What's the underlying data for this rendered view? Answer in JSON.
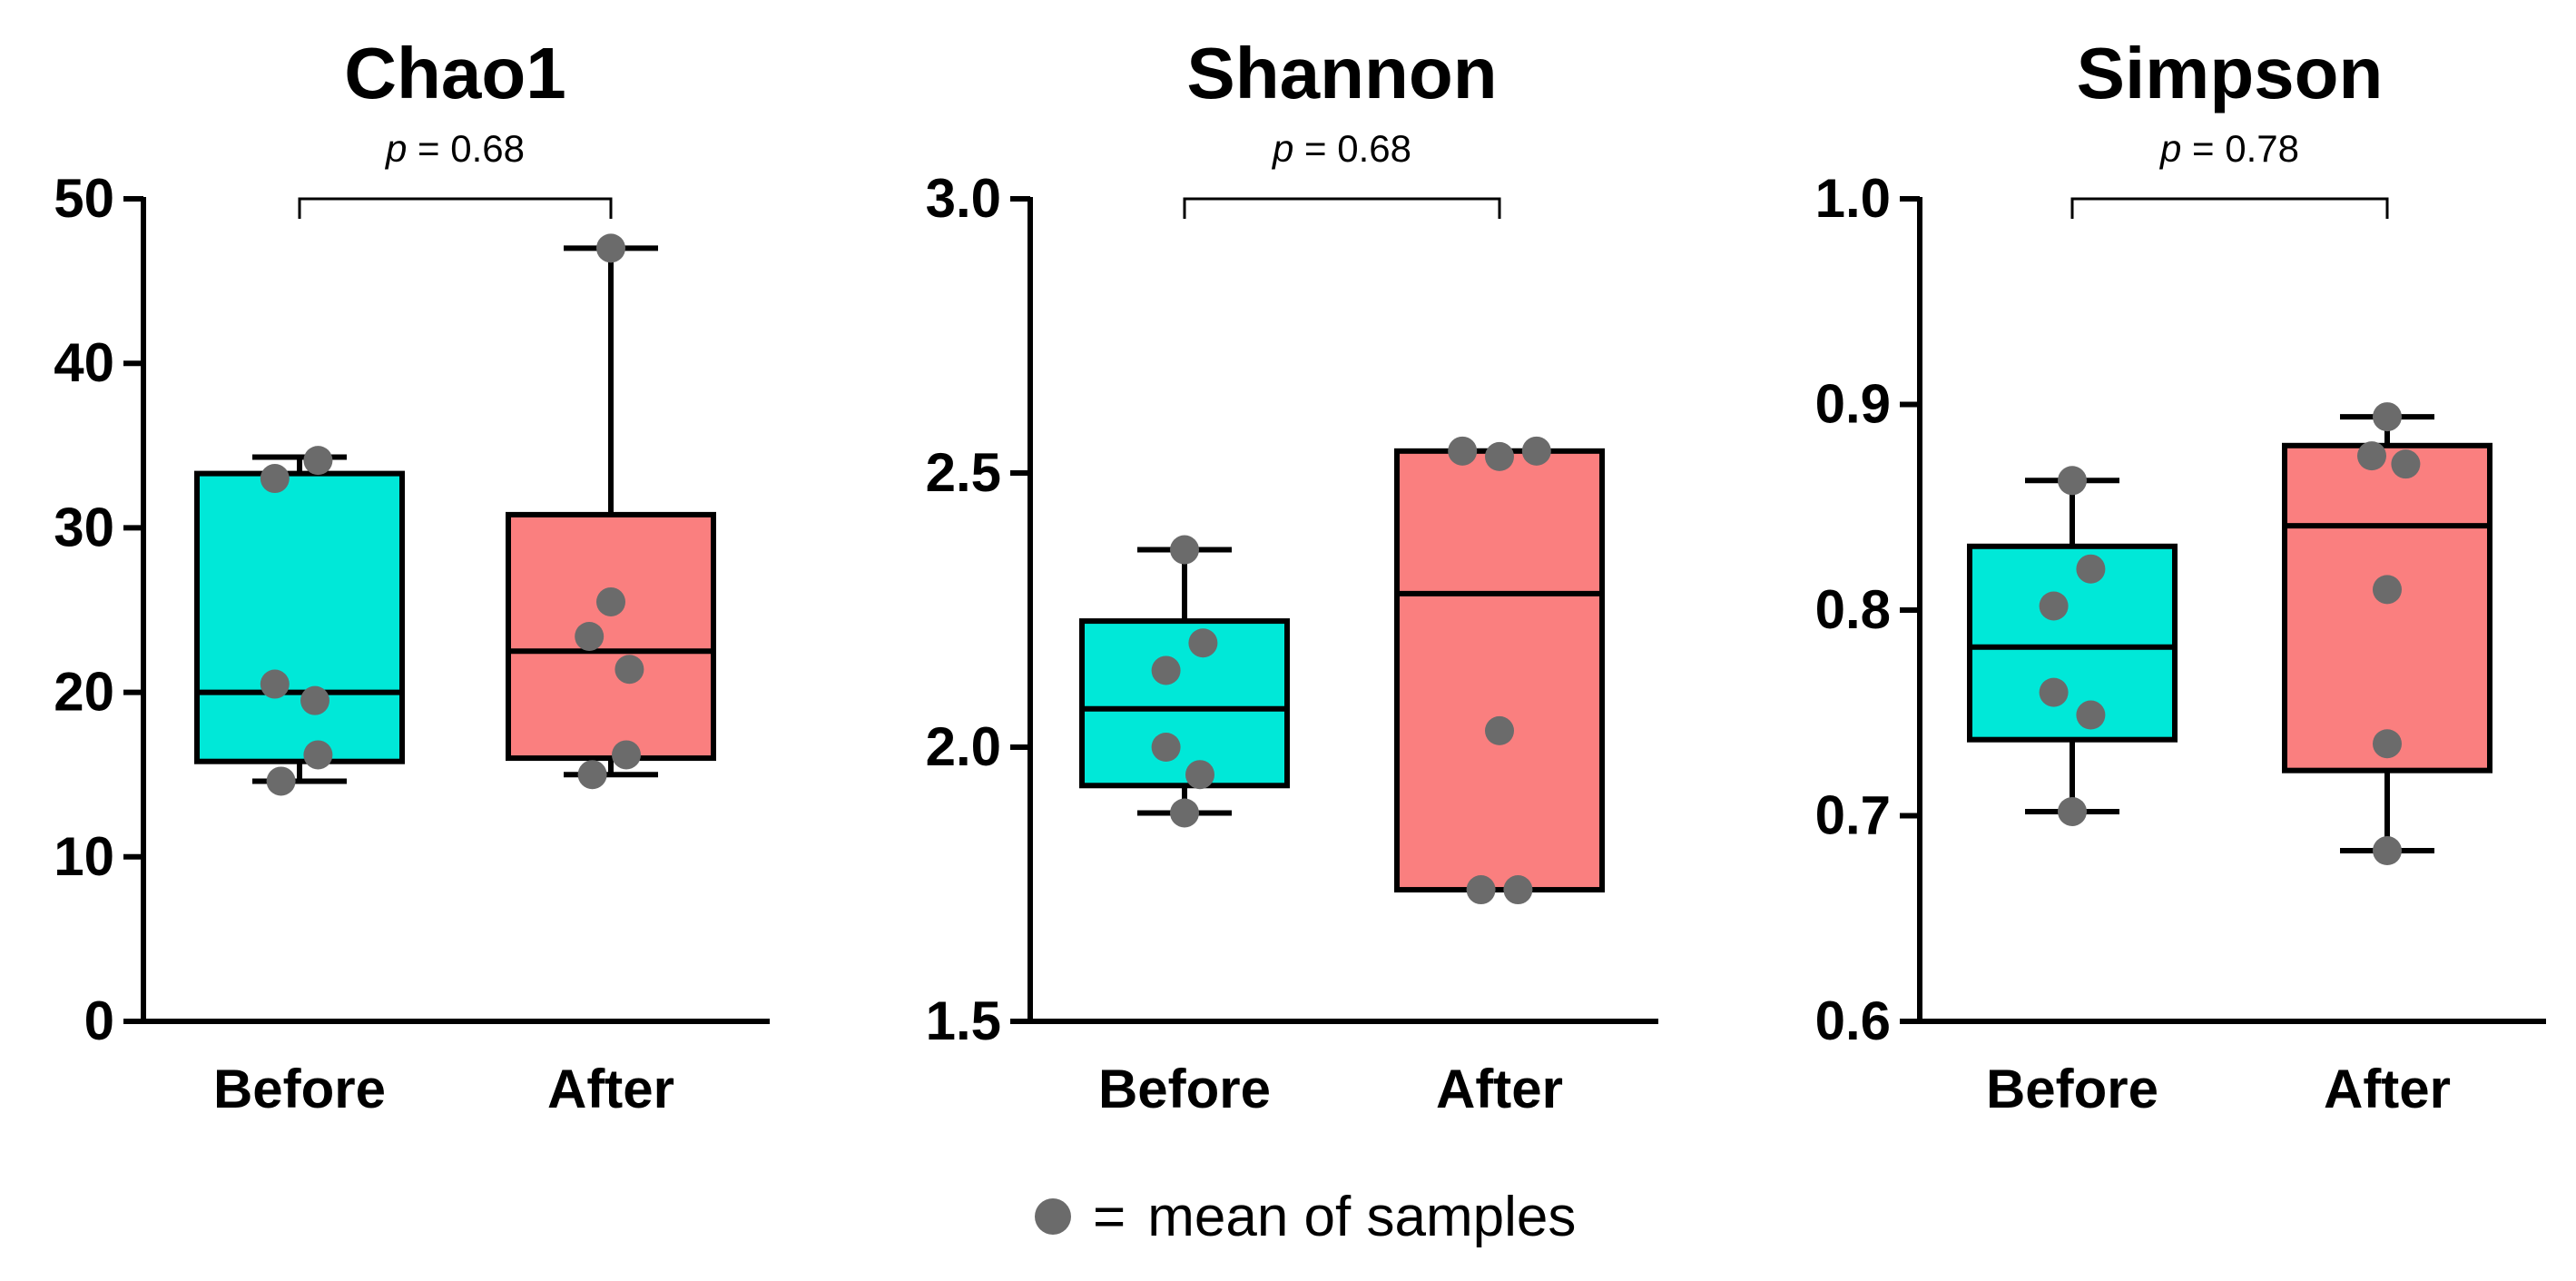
{
  "colors": {
    "before_fill": "#00e8d8",
    "after_fill": "#fa7f7f",
    "point": "#6b6b6b",
    "axis": "#000000"
  },
  "legend": {
    "marker_icon": "filled-circle",
    "equals": "=",
    "text": "mean of samples"
  },
  "chart_data": [
    {
      "type": "box",
      "title": "Chao1",
      "p_label": "p",
      "p_value": "= 0.68",
      "ylim": [
        0,
        50
      ],
      "yticks": [
        0,
        10,
        20,
        30,
        40,
        50
      ],
      "ytick_labels": [
        "0",
        "10",
        "20",
        "30",
        "40",
        "50"
      ],
      "categories": [
        "Before",
        "After"
      ],
      "boxes": [
        {
          "name": "Before",
          "min": 14.6,
          "q1": 15.8,
          "median": 20.0,
          "q3": 33.3,
          "max": 34.3,
          "points": [
            [
              -0.06,
              14.6
            ],
            [
              -0.08,
              20.5
            ],
            [
              0.05,
              19.5
            ],
            [
              0.06,
              16.2
            ],
            [
              -0.08,
              33.0
            ],
            [
              0.06,
              34.1
            ]
          ]
        },
        {
          "name": "After",
          "min": 15.0,
          "q1": 16.0,
          "median": 22.5,
          "q3": 30.8,
          "max": 47.0,
          "points": [
            [
              -0.06,
              15.0
            ],
            [
              0.05,
              16.2
            ],
            [
              0.06,
              21.4
            ],
            [
              -0.07,
              23.4
            ],
            [
              0.0,
              25.5
            ],
            [
              0.0,
              47.0
            ]
          ]
        }
      ]
    },
    {
      "type": "box",
      "title": "Shannon",
      "p_label": "p",
      "p_value": "= 0.68",
      "ylim": [
        1.5,
        3.0
      ],
      "yticks": [
        1.5,
        2.0,
        2.5,
        3.0
      ],
      "ytick_labels": [
        "1.5",
        "2.0",
        "2.5",
        "3.0"
      ],
      "categories": [
        "Before",
        "After"
      ],
      "boxes": [
        {
          "name": "Before",
          "min": 1.88,
          "q1": 1.93,
          "median": 2.07,
          "q3": 2.23,
          "max": 2.36,
          "points": [
            [
              0.0,
              1.88
            ],
            [
              0.05,
              1.95
            ],
            [
              -0.06,
              2.0
            ],
            [
              -0.06,
              2.14
            ],
            [
              0.06,
              2.19
            ],
            [
              0.0,
              2.36
            ]
          ]
        },
        {
          "name": "After",
          "min": 1.74,
          "q1": 1.74,
          "median": 2.28,
          "q3": 2.54,
          "max": 2.54,
          "points": [
            [
              -0.06,
              1.74
            ],
            [
              0.06,
              1.74
            ],
            [
              0.0,
              2.03
            ],
            [
              -0.12,
              2.54
            ],
            [
              0.0,
              2.53
            ],
            [
              0.12,
              2.54
            ]
          ]
        }
      ]
    },
    {
      "type": "box",
      "title": "Simpson",
      "p_label": "p",
      "p_value": "= 0.78",
      "ylim": [
        0.6,
        1.0
      ],
      "yticks": [
        0.6,
        0.7,
        0.8,
        0.9,
        1.0
      ],
      "ytick_labels": [
        "0.6",
        "0.7",
        "0.8",
        "0.9",
        "1.0"
      ],
      "categories": [
        "Before",
        "After"
      ],
      "boxes": [
        {
          "name": "Before",
          "min": 0.702,
          "q1": 0.737,
          "median": 0.782,
          "q3": 0.831,
          "max": 0.863,
          "points": [
            [
              0.0,
              0.702
            ],
            [
              0.06,
              0.749
            ],
            [
              -0.06,
              0.76
            ],
            [
              -0.06,
              0.802
            ],
            [
              0.06,
              0.82
            ],
            [
              0.0,
              0.863
            ]
          ]
        },
        {
          "name": "After",
          "min": 0.683,
          "q1": 0.722,
          "median": 0.841,
          "q3": 0.88,
          "max": 0.894,
          "points": [
            [
              0.0,
              0.683
            ],
            [
              0.0,
              0.735
            ],
            [
              0.0,
              0.81
            ],
            [
              -0.05,
              0.875
            ],
            [
              0.06,
              0.871
            ],
            [
              0.0,
              0.894
            ]
          ]
        }
      ]
    }
  ]
}
